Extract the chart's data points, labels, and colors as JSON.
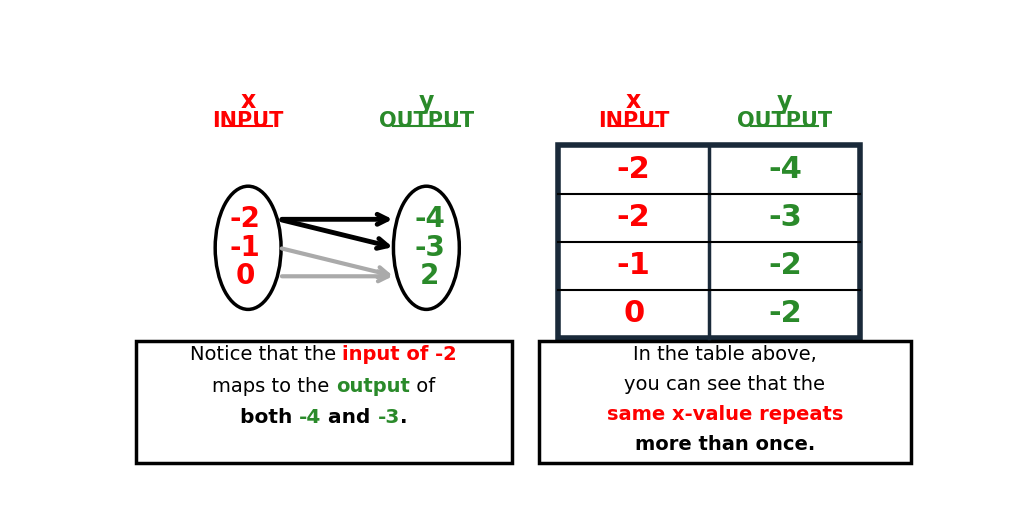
{
  "bg_color": "#ffffff",
  "red": "#ff0000",
  "dark_green": "#2a8a2a",
  "black": "#000000",
  "gray": "#999999",
  "dark_navy": "#1a2a3a",
  "left_inputs": [
    "-2",
    "-1",
    "0"
  ],
  "right_outputs": [
    "-4",
    "-3",
    "2"
  ],
  "table_x_vals": [
    "-2",
    "-2",
    "-1",
    "0"
  ],
  "table_y_vals": [
    "-4",
    "-3",
    "-2",
    "-2"
  ]
}
